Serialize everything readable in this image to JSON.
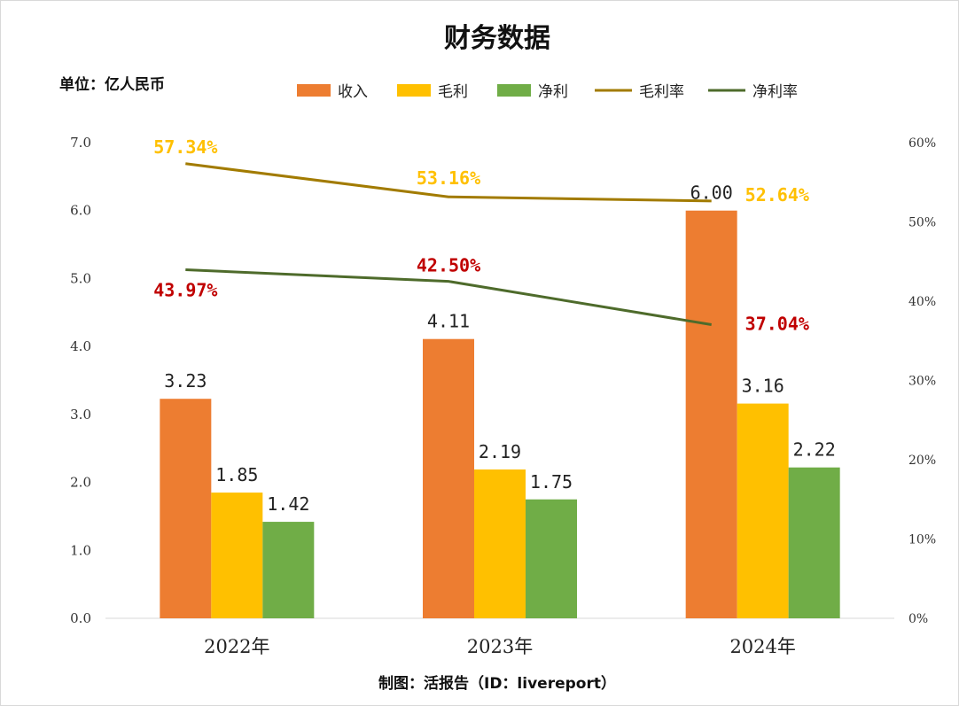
{
  "chart_data": {
    "type": "bar",
    "title": "财务数据",
    "unit_label": "单位：亿人民币",
    "credit": "制图：活报告（ID：livereport）",
    "categories": [
      "2022年",
      "2023年",
      "2024年"
    ],
    "ylim": [
      0,
      7
    ],
    "yticks": [
      "0.0",
      "1.0",
      "2.0",
      "3.0",
      "4.0",
      "5.0",
      "6.0",
      "7.0"
    ],
    "y2lim": [
      0,
      60
    ],
    "y2ticks": [
      "0%",
      "10%",
      "20%",
      "30%",
      "40%",
      "50%",
      "60%"
    ],
    "series": [
      {
        "name": "收入",
        "kind": "bar",
        "axis": "left",
        "color": "#ed7d31",
        "values": [
          3.23,
          4.11,
          6.0
        ],
        "labels": [
          "3.23",
          "4.11",
          "6.00"
        ]
      },
      {
        "name": "毛利",
        "kind": "bar",
        "axis": "left",
        "color": "#ffc000",
        "values": [
          1.85,
          2.19,
          3.16
        ],
        "labels": [
          "1.85",
          "2.19",
          "3.16"
        ]
      },
      {
        "name": "净利",
        "kind": "bar",
        "axis": "left",
        "color": "#70ad47",
        "values": [
          1.42,
          1.75,
          2.22
        ],
        "labels": [
          "1.42",
          "1.75",
          "2.22"
        ]
      },
      {
        "name": "毛利率",
        "kind": "line",
        "axis": "right",
        "color": "#a27b00",
        "label_color": "#ffc000",
        "values": [
          57.34,
          53.16,
          52.64
        ],
        "labels": [
          "57.34%",
          "53.16%",
          "52.64%"
        ]
      },
      {
        "name": "净利率",
        "kind": "line",
        "axis": "right",
        "color": "#4e6b2b",
        "label_color": "#c00000",
        "values": [
          43.97,
          42.5,
          37.04
        ],
        "labels": [
          "43.97%",
          "42.50%",
          "37.04%"
        ]
      }
    ],
    "legend_position": "top-center"
  }
}
